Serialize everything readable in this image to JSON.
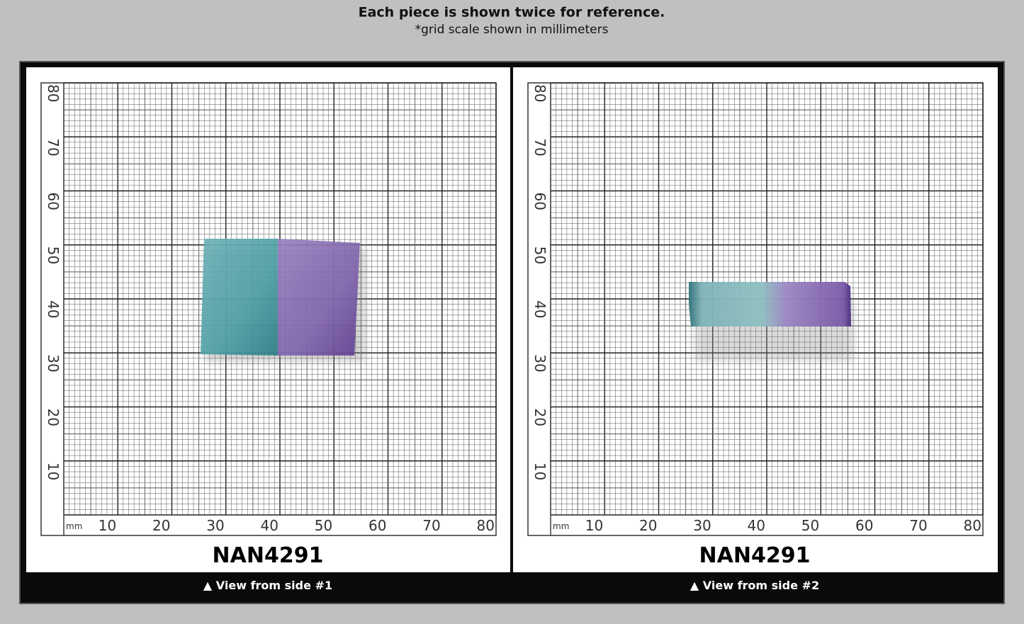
{
  "header": {
    "title": "Each piece is shown twice for reference.",
    "subtitle": "*grid scale shown in millimeters"
  },
  "panels": [
    {
      "label": "NAN4291",
      "caption": "▲ View from side #1",
      "unit": "mm",
      "x_labels": [
        10,
        20,
        30,
        40,
        50,
        60,
        70,
        80
      ],
      "y_labels": [
        10,
        20,
        30,
        40,
        50,
        60,
        70,
        80
      ]
    },
    {
      "label": "NAN4291",
      "caption": "▲ View from side #2",
      "unit": "mm",
      "x_labels": [
        10,
        20,
        30,
        40,
        50,
        60,
        70,
        80
      ],
      "y_labels": [
        10,
        20,
        30,
        40,
        50,
        60,
        70,
        80
      ]
    }
  ]
}
